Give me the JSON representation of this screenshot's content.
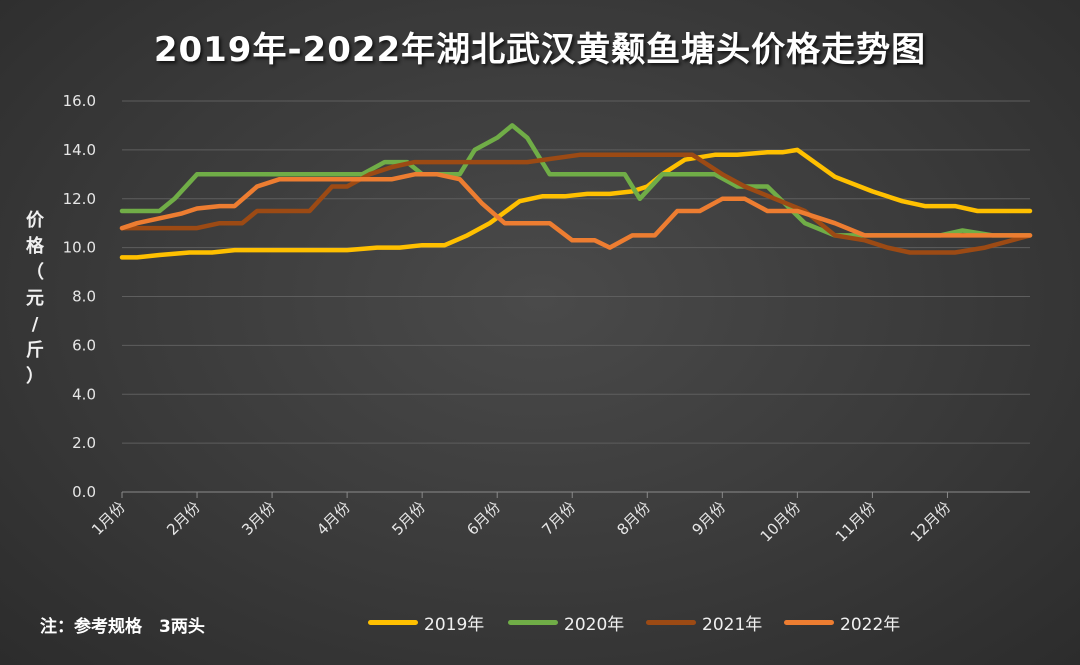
{
  "chart_data": {
    "type": "line",
    "title": "2019年-2022年湖北武汉黄颡鱼塘头价格走势图",
    "ylabel": "价格（元/斤）",
    "ylim": [
      0,
      16
    ],
    "yticks": [
      "0.0",
      "2.0",
      "4.0",
      "6.0",
      "8.0",
      "10.0",
      "12.0",
      "14.0",
      "16.0"
    ],
    "xtick_labels": [
      "1月份",
      "2月份",
      "3月份",
      "4月份",
      "5月份",
      "6月份",
      "7月份",
      "8月份",
      "9月份",
      "10月份",
      "11月份",
      "12月份"
    ],
    "x_range": [
      1,
      13.1
    ],
    "grid": true,
    "legend_position": "bottom",
    "series": [
      {
        "name": "2019年",
        "color": "#FFC000",
        "x": [
          1,
          1.2,
          1.5,
          1.9,
          2.2,
          2.5,
          2.9,
          3.3,
          3.7,
          4.0,
          4.4,
          4.7,
          5.0,
          5.3,
          5.6,
          5.9,
          6.3,
          6.6,
          6.9,
          7.2,
          7.5,
          7.8,
          8.0,
          8.2,
          8.5,
          8.9,
          9.2,
          9.6,
          9.8,
          10.0,
          10.5,
          11.0,
          11.4,
          11.7,
          12.1,
          12.4,
          12.7,
          13.1
        ],
        "values": [
          9.6,
          9.6,
          9.7,
          9.8,
          9.8,
          9.9,
          9.9,
          9.9,
          9.9,
          9.9,
          10.0,
          10.0,
          10.1,
          10.1,
          10.5,
          11.0,
          11.9,
          12.1,
          12.1,
          12.2,
          12.2,
          12.3,
          12.5,
          13.0,
          13.6,
          13.8,
          13.8,
          13.9,
          13.9,
          14.0,
          12.9,
          12.3,
          11.9,
          11.7,
          11.7,
          11.5,
          11.5,
          11.5
        ]
      },
      {
        "name": "2020年",
        "color": "#70AD47",
        "x": [
          1,
          1.2,
          1.5,
          1.7,
          2.0,
          2.6,
          3.2,
          3.9,
          4.2,
          4.5,
          4.8,
          5.0,
          5.3,
          5.5,
          5.7,
          6.0,
          6.2,
          6.4,
          6.7,
          7.1,
          7.4,
          7.7,
          7.9,
          8.2,
          8.6,
          8.9,
          9.2,
          9.6,
          10.1,
          10.5,
          11.0,
          11.4,
          11.7,
          11.9,
          12.2,
          12.6,
          13.1
        ],
        "values": [
          11.5,
          11.5,
          11.5,
          12.0,
          13.0,
          13.0,
          13.0,
          13.0,
          13.0,
          13.5,
          13.5,
          13.0,
          13.0,
          13.0,
          14.0,
          14.5,
          15.0,
          14.5,
          13.0,
          13.0,
          13.0,
          13.0,
          12.0,
          13.0,
          13.0,
          13.0,
          12.5,
          12.5,
          11.0,
          10.5,
          10.5,
          10.5,
          10.5,
          10.5,
          10.7,
          10.5,
          10.5
        ]
      },
      {
        "name": "2021年",
        "color": "#9C4A14",
        "x": [
          1,
          1.3,
          1.6,
          2.0,
          2.3,
          2.6,
          2.8,
          3.0,
          3.2,
          3.5,
          3.8,
          4.0,
          4.3,
          4.6,
          4.9,
          5.1,
          5.3,
          5.6,
          5.9,
          6.2,
          6.4,
          7.1,
          7.6,
          8.0,
          8.3,
          8.6,
          9.0,
          9.3,
          9.7,
          10.1,
          10.5,
          10.9,
          11.2,
          11.5,
          11.8,
          12.1,
          12.5,
          13.1
        ],
        "values": [
          10.8,
          10.8,
          10.8,
          10.8,
          11.0,
          11.0,
          11.5,
          11.5,
          11.5,
          11.5,
          12.5,
          12.5,
          13.0,
          13.3,
          13.5,
          13.5,
          13.5,
          13.5,
          13.5,
          13.5,
          13.5,
          13.8,
          13.8,
          13.8,
          13.8,
          13.8,
          13.0,
          12.5,
          12.0,
          11.5,
          10.5,
          10.3,
          10.0,
          9.8,
          9.8,
          9.8,
          10.0,
          10.5
        ]
      },
      {
        "name": "2022年",
        "color": "#ED7D31",
        "x": [
          1,
          1.2,
          1.5,
          1.8,
          2.0,
          2.3,
          2.5,
          2.8,
          3.1,
          3.4,
          3.7,
          4.0,
          4.3,
          4.6,
          4.9,
          5.2,
          5.5,
          5.8,
          6.1,
          6.4,
          6.7,
          7.0,
          7.3,
          7.5,
          7.8,
          8.1,
          8.4,
          8.7,
          9.0,
          9.3,
          9.6,
          10.0,
          10.5,
          10.9,
          11.3,
          11.6,
          11.9,
          12.3,
          12.6,
          13.1
        ],
        "values": [
          10.8,
          11.0,
          11.2,
          11.4,
          11.6,
          11.7,
          11.7,
          12.5,
          12.8,
          12.8,
          12.8,
          12.8,
          12.8,
          12.8,
          13.0,
          13.0,
          12.8,
          11.8,
          11.0,
          11.0,
          11.0,
          10.3,
          10.3,
          10.0,
          10.5,
          10.5,
          11.5,
          11.5,
          12.0,
          12.0,
          11.5,
          11.5,
          11.0,
          10.5,
          10.5,
          10.5,
          10.5,
          10.5,
          10.5,
          10.5
        ]
      }
    ]
  },
  "ylabel_chars": [
    "价",
    "格",
    "（",
    "元",
    "/",
    "斤",
    "）"
  ],
  "note": "注：参考规格　3两头"
}
